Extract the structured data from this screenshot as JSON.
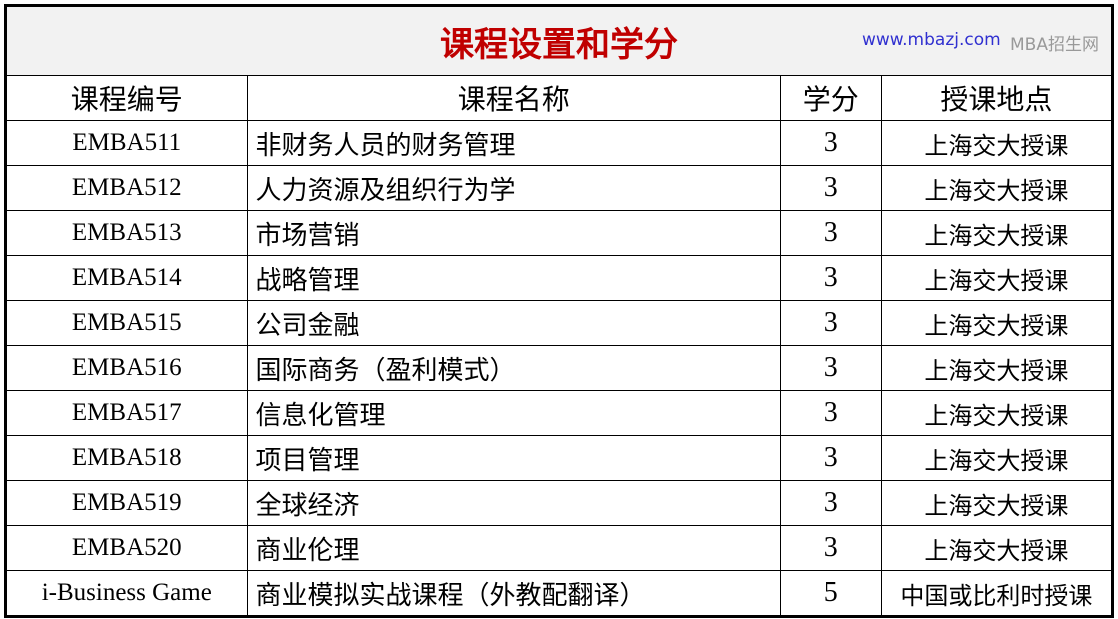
{
  "title": "课程设置和学分",
  "headers": [
    "课程编号",
    "课程名称",
    "学分",
    "授课地点"
  ],
  "rows": [
    [
      "EMBA511",
      "非财务人员的财务管理",
      "3",
      "上海交大授课"
    ],
    [
      "EMBA512",
      "人力资源及组织行为学",
      "3",
      "上海交大授课"
    ],
    [
      "EMBA513",
      "市场营销",
      "3",
      "上海交大授课"
    ],
    [
      "EMBA514",
      "战略管理",
      "3",
      "上海交大授课"
    ],
    [
      "EMBA515",
      "公司金融",
      "3",
      "上海交大授课"
    ],
    [
      "EMBA516",
      "国际商务（盈利模式）",
      "3",
      "上海交大授课"
    ],
    [
      "EMBA517",
      "信息化管理",
      "3",
      "上海交大授课"
    ],
    [
      "EMBA518",
      "项目管理",
      "3",
      "上海交大授课"
    ],
    [
      "EMBA519",
      "全球经济",
      "3",
      "上海交大授课"
    ],
    [
      "EMBA520",
      "商业伦理",
      "3",
      "上海交大授课"
    ],
    [
      "i-Business Game",
      "商业模拟实战课程（外教配翻译）",
      "5",
      "中国或比利时授课"
    ]
  ],
  "watermark": {
    "url": "www.mbazj.com",
    "site": "MBA招生网"
  }
}
